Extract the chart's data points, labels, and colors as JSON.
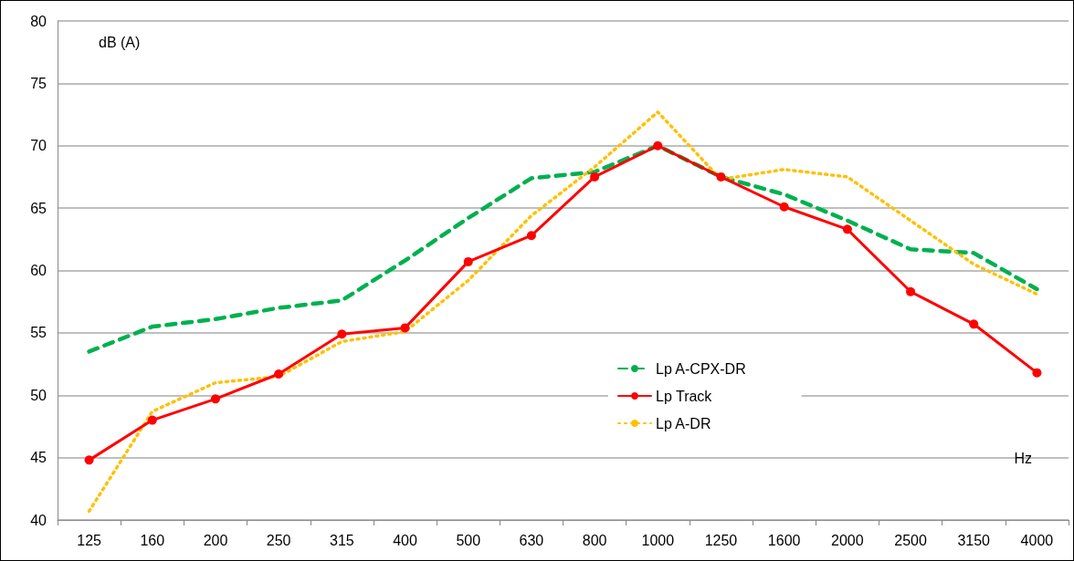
{
  "chart_data": {
    "type": "line",
    "xlabel": "Hz",
    "ylabel": "dB (A)",
    "categories": [
      "125",
      "160",
      "200",
      "250",
      "315",
      "400",
      "500",
      "630",
      "800",
      "1000",
      "1250",
      "1600",
      "2000",
      "2500",
      "3150",
      "4000"
    ],
    "series": [
      {
        "name": "Lp A-CPX-DR",
        "color": "#00b050",
        "line_style": "dashed",
        "marker": "none",
        "values": [
          53.5,
          55.5,
          56.1,
          57.0,
          57.6,
          60.8,
          64.2,
          67.4,
          67.9,
          70.0,
          67.5,
          66.1,
          64.0,
          61.7,
          61.4,
          58.5
        ]
      },
      {
        "name": "Lp Track",
        "color": "#ff0000",
        "line_style": "solid",
        "marker": "circle",
        "values": [
          44.8,
          48.0,
          49.7,
          51.7,
          54.9,
          55.4,
          60.7,
          62.8,
          67.5,
          70.0,
          67.5,
          65.1,
          63.3,
          58.3,
          55.7,
          51.8
        ]
      },
      {
        "name": "Lp A-DR",
        "color": "#ffc000",
        "line_style": "dotted",
        "marker": "none",
        "values": [
          40.7,
          48.7,
          51.0,
          51.5,
          54.3,
          55.1,
          59.2,
          64.4,
          68.3,
          72.7,
          67.3,
          68.1,
          67.5,
          64.0,
          60.5,
          58.1
        ]
      }
    ],
    "ylim": [
      40,
      80
    ],
    "yticks": [
      40,
      45,
      50,
      55,
      60,
      65,
      70,
      75,
      80
    ],
    "grid": "y",
    "legend": "center"
  }
}
